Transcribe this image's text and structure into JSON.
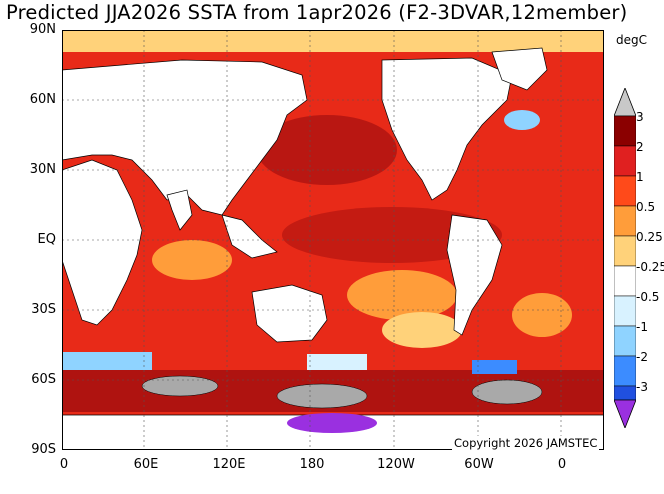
{
  "title": "Predicted JJA2026 SSTA from 1apr2026 (F2-3DVAR,12member)",
  "unit": "degC",
  "copyright": "Copyright 2026 JAMSTEC",
  "lat_labels": [
    "90N",
    "60N",
    "30N",
    "EQ",
    "30S",
    "60S",
    "90S"
  ],
  "lon_labels": [
    "0",
    "60E",
    "120E",
    "180",
    "120W",
    "60W",
    "0"
  ],
  "colorbar": {
    "labels": [
      "3",
      "2",
      "1",
      "0.5",
      "0.25",
      "-0.25",
      "-0.5",
      "-1",
      "-2",
      "-3"
    ],
    "colors": [
      "#c8c8c8",
      "#8b0000",
      "#e02020",
      "#ff4a1a",
      "#ff9d3a",
      "#ffd27a",
      "#ffffff",
      "#d8f2ff",
      "#8fd3ff",
      "#3c8cff",
      "#2050e0",
      "#9a30e0"
    ]
  },
  "colors": {
    "land": "#ffffff",
    "sea_ice": "#a9a9a9",
    "anom_025_05": "#ffd27a",
    "anom_05_1": "#ff9d3a",
    "anom_1_2": "#e82a18",
    "anom_2_3": "#a50f0f",
    "anom_neg_025_05": "#d8f2ff",
    "anom_neg_05_1": "#8fd3ff",
    "anom_neg_1_2": "#3c8cff",
    "anom_neg_2_3": "#2050e0",
    "anom_neg_lt3": "#9a30e0"
  }
}
